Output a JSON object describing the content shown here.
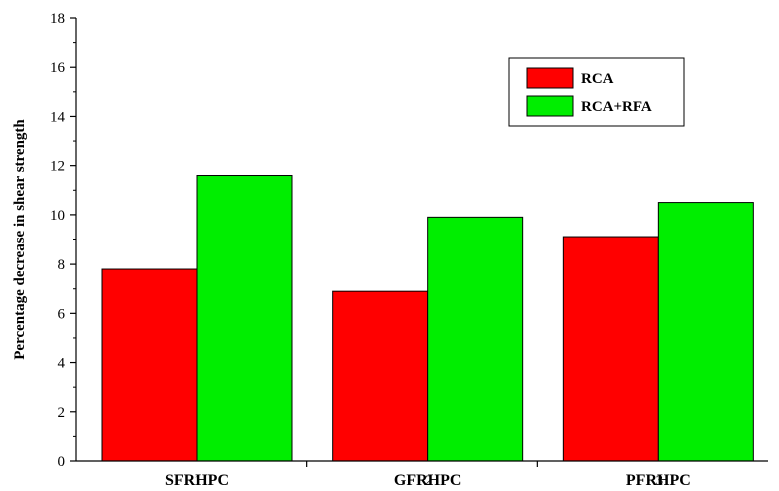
{
  "chart_data": {
    "type": "bar",
    "title": "",
    "xlabel": "",
    "ylabel": "Percentage decrease in shear strength",
    "categories": [
      "SFRHPC",
      "GFRHPC",
      "PFRHPC"
    ],
    "category_overlay_numbers": [
      "1",
      "2",
      "3"
    ],
    "series": [
      {
        "name": "RCA",
        "values": [
          7.8,
          6.9,
          9.1
        ],
        "color": "#ff0000"
      },
      {
        "name": "RCA+RFA",
        "values": [
          11.6,
          9.9,
          10.5
        ],
        "color": "#00ee00"
      }
    ],
    "ylim": [
      0,
      18
    ],
    "yticks": [
      "0",
      "2",
      "4",
      "6",
      "8",
      "10",
      "12",
      "14",
      "16",
      "18"
    ],
    "grid": false,
    "legend_position": "top-right"
  }
}
